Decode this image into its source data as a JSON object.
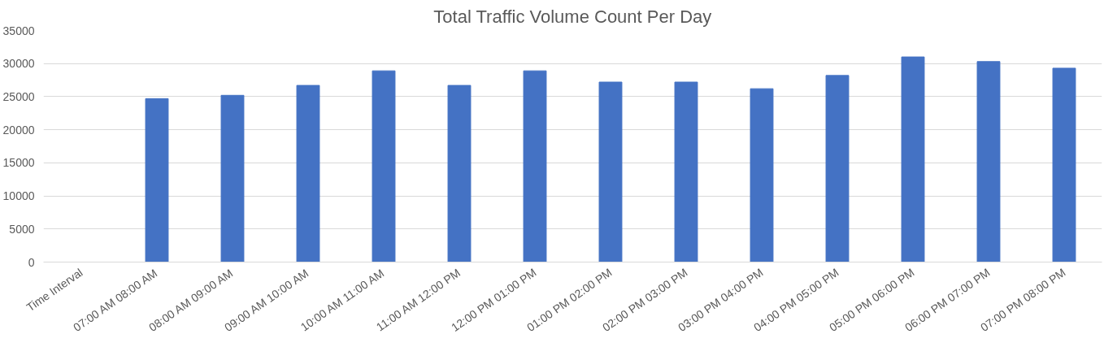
{
  "chart_data": {
    "type": "bar",
    "title": "Total Traffic Volume Count Per Day",
    "categories": [
      "Time Interval",
      "07:00 AM 08:00 AM",
      "08:00 AM 09:00 AM",
      "09:00 AM 10:00 AM",
      "10:00 AM 11:00 AM",
      "11:00 AM 12:00 PM",
      "12:00 PM 01:00 PM",
      "01:00 PM 02:00 PM",
      "02:00 PM 03:00 PM",
      "03:00 PM 04:00 PM",
      "04:00 PM 05:00 PM",
      "05:00 PM 06:00 PM",
      "06:00 PM 07:00 PM",
      "07:00 PM 08:00 PM"
    ],
    "values": [
      null,
      24700,
      25200,
      26700,
      28900,
      26700,
      28900,
      27200,
      27200,
      26200,
      28200,
      31000,
      30300,
      29300
    ],
    "color": "#4472c4",
    "ylim": [
      0,
      35000
    ],
    "yticks": [
      0,
      5000,
      10000,
      15000,
      20000,
      25000,
      30000,
      35000
    ],
    "grid": "y"
  }
}
